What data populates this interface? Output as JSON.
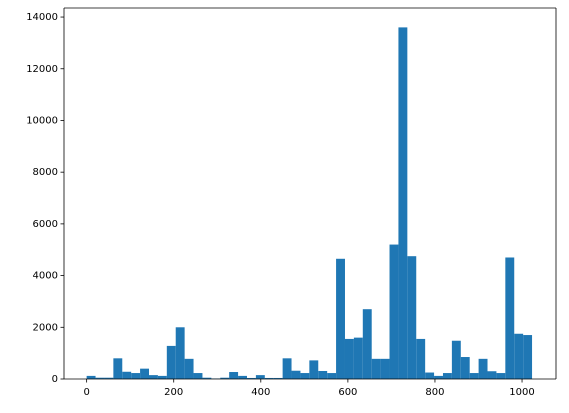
{
  "chart_data": {
    "type": "histogram",
    "color": "#1f77b4",
    "bins": [
      0,
      20.46,
      40.92,
      61.38,
      81.84,
      102.3,
      122.76,
      143.22,
      163.68,
      184.14,
      204.6,
      225.06,
      245.52,
      265.98,
      286.44,
      306.9,
      327.36,
      347.82,
      368.28,
      388.74,
      409.2,
      429.66,
      450.12,
      470.58,
      491.04,
      511.5,
      531.96,
      552.42,
      572.88,
      593.34,
      613.8,
      634.26,
      654.72,
      675.18,
      695.64,
      716.1,
      736.56,
      757.02,
      777.48,
      797.94,
      818.4,
      838.86,
      859.32,
      879.78,
      900.24,
      920.7,
      941.16,
      961.62,
      982.08,
      1002.54,
      1023
    ],
    "values": [
      120,
      50,
      50,
      800,
      280,
      230,
      400,
      150,
      120,
      1280,
      2000,
      780,
      230,
      50,
      20,
      50,
      270,
      120,
      40,
      150,
      40,
      40,
      800,
      320,
      230,
      720,
      310,
      230,
      4650,
      1550,
      1600,
      2700,
      780,
      780,
      5200,
      13600,
      4750,
      1550,
      250,
      120,
      230,
      1480,
      850,
      230,
      780,
      300,
      230,
      4700,
      1750,
      1700
    ],
    "xlim": [
      -52,
      1078
    ],
    "xticks": [
      0,
      200,
      400,
      600,
      800,
      1000
    ],
    "ylim": [
      0,
      14350
    ],
    "yticks": [
      0,
      2000,
      4000,
      6000,
      8000,
      10000,
      12000,
      14000
    ]
  }
}
